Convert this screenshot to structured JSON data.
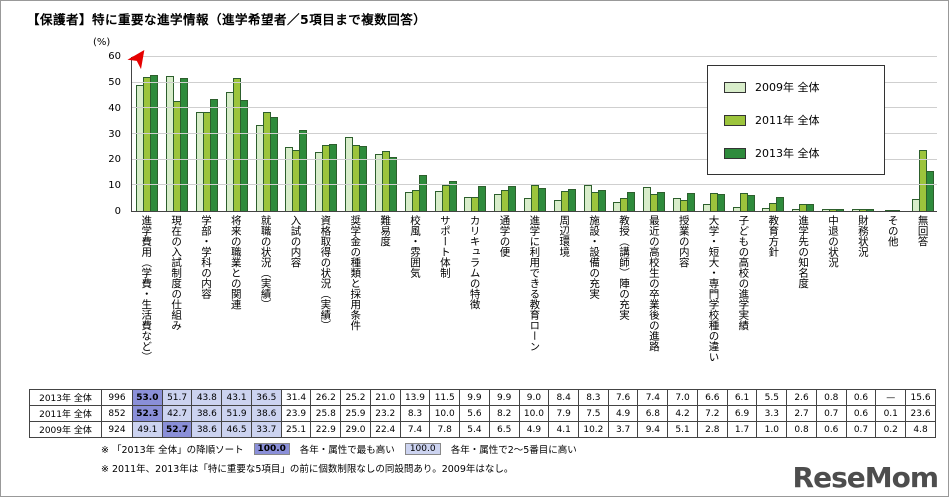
{
  "title": "【保護者】特に重要な進学情報（進学希望者／5項目まで複数回答）",
  "logo": "ReseMom",
  "icons": {
    "sort_arrow": "➤"
  },
  "colors": {
    "series_2009_fill": "#d8edca",
    "series_2011_fill": "#9cc43c",
    "series_2013_fill": "#2e8b3c",
    "bar_border": "#2d5f2d",
    "highlight_top1": "#8a8fd8",
    "highlight_top2_5": "#ccd3f0",
    "sort_arrow": "#e60000"
  },
  "chart_data": {
    "type": "bar",
    "title": "【保護者】特に重要な進学情報（進学希望者／5項目まで複数回答）",
    "ylabel": "(%)",
    "ylim": [
      0,
      60
    ],
    "yticks": [
      0,
      10,
      20,
      30,
      40,
      50,
      60
    ],
    "grid": true,
    "legend_position": "top-right",
    "categories": [
      "進学費用（学費・生活費など）",
      "現在の入試制度の仕組み",
      "学部・学科の内容",
      "将来の職業との関連",
      "就職の状況（実績）",
      "入試の内容",
      "資格取得の状況（実績）",
      "奨学金の種類と採用条件",
      "難易度",
      "校風・雰囲気",
      "サポート体制",
      "カリキュラムの特徴",
      "通学の便",
      "進学に利用できる教育ローン",
      "周辺環境",
      "施設・設備の充実",
      "教授（講師）陣の充実",
      "最近の高校生の卒業後の進路",
      "授業の内容",
      "大学・短大・専門学校種の違い",
      "子どもの高校の進学実績",
      "教育方針",
      "進学先の知名度",
      "中退の状況",
      "財務状況",
      "その他",
      "無回答"
    ],
    "series": [
      {
        "name": "2009年 全体",
        "n": "924",
        "values": [
          49.1,
          52.7,
          38.6,
          46.5,
          33.7,
          25.1,
          22.9,
          29.0,
          22.4,
          7.4,
          7.8,
          5.4,
          6.5,
          4.9,
          4.1,
          10.2,
          3.7,
          9.4,
          5.1,
          2.8,
          1.7,
          1.0,
          0.8,
          0.6,
          0.7,
          0.2,
          4.8
        ]
      },
      {
        "name": "2011年 全体",
        "n": "852",
        "values": [
          52.3,
          42.7,
          38.6,
          51.9,
          38.6,
          23.9,
          25.8,
          25.9,
          23.2,
          8.3,
          10.0,
          5.6,
          8.2,
          10.0,
          7.9,
          7.5,
          4.9,
          6.8,
          4.2,
          7.2,
          6.9,
          3.3,
          2.7,
          0.7,
          0.6,
          0.1,
          23.6
        ]
      },
      {
        "name": "2013年 全体",
        "n": "996",
        "values": [
          53.0,
          51.7,
          43.8,
          43.1,
          36.5,
          31.4,
          26.2,
          25.2,
          21.0,
          13.9,
          11.5,
          9.9,
          9.9,
          9.0,
          8.4,
          8.3,
          7.6,
          7.4,
          7.0,
          6.6,
          6.1,
          5.5,
          2.6,
          0.8,
          0.6,
          null,
          15.6
        ]
      }
    ]
  },
  "table": {
    "rows": [
      {
        "label": "2013年 全体",
        "n": "996",
        "values": [
          "53.0",
          "51.7",
          "43.8",
          "43.1",
          "36.5",
          "31.4",
          "26.2",
          "25.2",
          "21.0",
          "13.9",
          "11.5",
          "9.9",
          "9.9",
          "9.0",
          "8.4",
          "8.3",
          "7.6",
          "7.4",
          "7.0",
          "6.6",
          "6.1",
          "5.5",
          "2.6",
          "0.8",
          "0.6",
          "—",
          "15.6"
        ]
      },
      {
        "label": "2011年 全体",
        "n": "852",
        "values": [
          "52.3",
          "42.7",
          "38.6",
          "51.9",
          "38.6",
          "23.9",
          "25.8",
          "25.9",
          "23.2",
          "8.3",
          "10.0",
          "5.6",
          "8.2",
          "10.0",
          "7.9",
          "7.5",
          "4.9",
          "6.8",
          "4.2",
          "7.2",
          "6.9",
          "3.3",
          "2.7",
          "0.7",
          "0.6",
          "0.1",
          "23.6"
        ]
      },
      {
        "label": "2009年 全体",
        "n": "924",
        "values": [
          "49.1",
          "52.7",
          "38.6",
          "46.5",
          "33.7",
          "25.1",
          "22.9",
          "29.0",
          "22.4",
          "7.4",
          "7.8",
          "5.4",
          "6.5",
          "4.9",
          "4.1",
          "10.2",
          "3.7",
          "9.4",
          "5.1",
          "2.8",
          "1.7",
          "1.0",
          "0.8",
          "0.6",
          "0.7",
          "0.2",
          "4.8"
        ]
      }
    ]
  },
  "footnotes": {
    "note1": "※ 「2013年 全体」の降順ソート",
    "hl_top1_value": "100.0",
    "hl_top1_label": "各年・属性で最も高い",
    "hl_top2_5_value": "100.0",
    "hl_top2_5_label": "各年・属性で2～5番目に高い",
    "note2": "※ 2011年、2013年は「特に重要な5項目」の前に個数制限なしの同設問あり。2009年はなし。"
  }
}
